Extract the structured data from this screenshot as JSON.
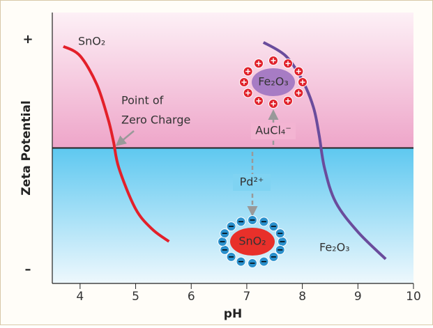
{
  "chart_data": {
    "type": "line",
    "x_label": "pH",
    "y_label": "Zeta Potential",
    "xlim": [
      3.5,
      10
    ],
    "xticks": [
      4,
      5,
      6,
      7,
      8,
      9,
      10
    ],
    "ylim": [
      -1,
      1
    ],
    "yticks": [
      {
        "value": 0.8,
        "label": "+"
      },
      {
        "value": -0.9,
        "label": "–"
      }
    ],
    "series": [
      {
        "name": "SnO₂",
        "color": "#e3202a",
        "x": [
          3.7,
          4.0,
          4.3,
          4.5,
          4.6,
          4.7,
          5.0,
          5.3,
          5.6
        ],
        "values": [
          0.75,
          0.68,
          0.47,
          0.22,
          0.05,
          -0.15,
          -0.45,
          -0.6,
          -0.69
        ]
      },
      {
        "name": "Fe₂O₃",
        "color": "#6a4c9c",
        "x": [
          7.3,
          7.7,
          8.0,
          8.2,
          8.3,
          8.4,
          8.6,
          9.0,
          9.5
        ],
        "values": [
          0.78,
          0.68,
          0.5,
          0.3,
          0.1,
          -0.15,
          -0.4,
          -0.62,
          -0.82
        ]
      }
    ],
    "annotations": [
      "Point of",
      "Zero Charge",
      "AuCl₄⁻",
      "Pd²⁺",
      "Fe₂O₃",
      "SnO₂"
    ]
  }
}
